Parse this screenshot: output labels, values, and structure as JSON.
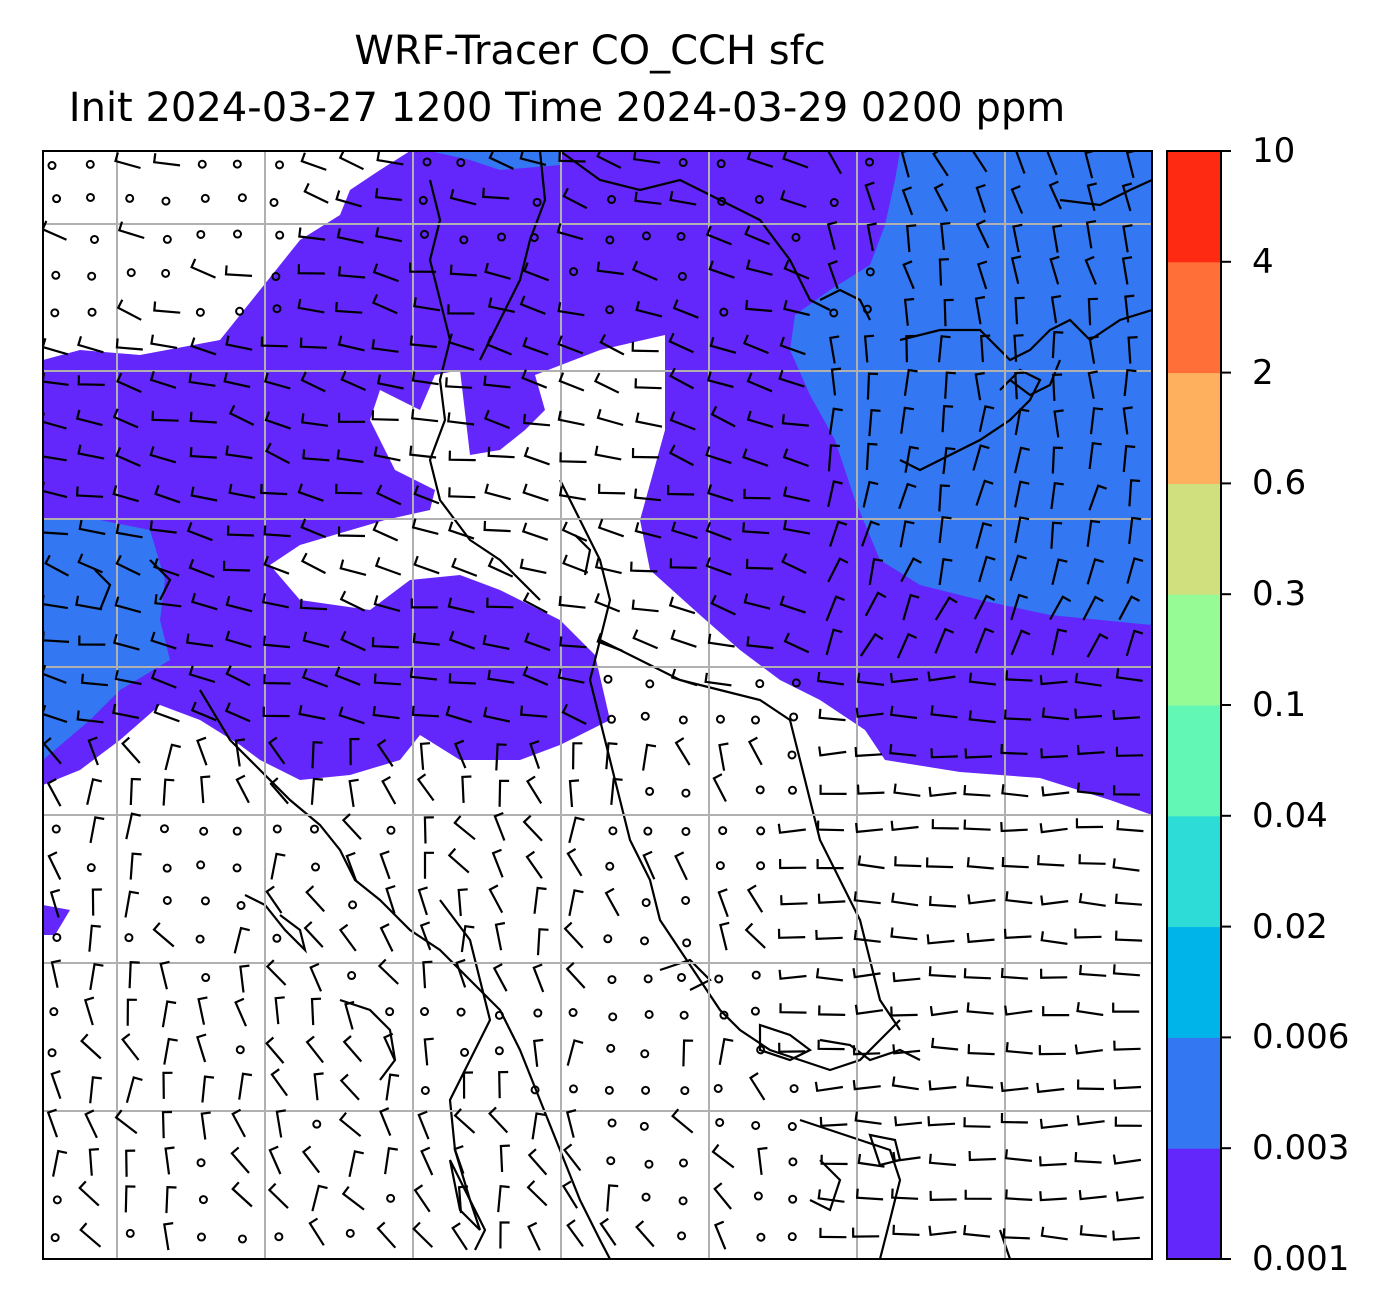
{
  "title": {
    "line1": "WRF-Tracer CO_CCH sfc",
    "line2": "Init 2024-03-27 1200 Time 2024-03-29 0200 ppm"
  },
  "colorbar": {
    "levels": [
      "0.001",
      "0.003",
      "0.006",
      "0.02",
      "0.04",
      "0.1",
      "0.3",
      "0.6",
      "2",
      "4",
      "10"
    ],
    "colors": [
      "#6327fb",
      "#3377f2",
      "#00b3e9",
      "#2ddcd6",
      "#63f7b6",
      "#96fa95",
      "#d0e07f",
      "#feb05f",
      "#ff6f37",
      "#ff2a12"
    ]
  },
  "map": {
    "field_colors": {
      "band_0_001": "#6327fb",
      "band_0_003": "#3377f2"
    },
    "grid_color": "#b0b0b0"
  }
}
